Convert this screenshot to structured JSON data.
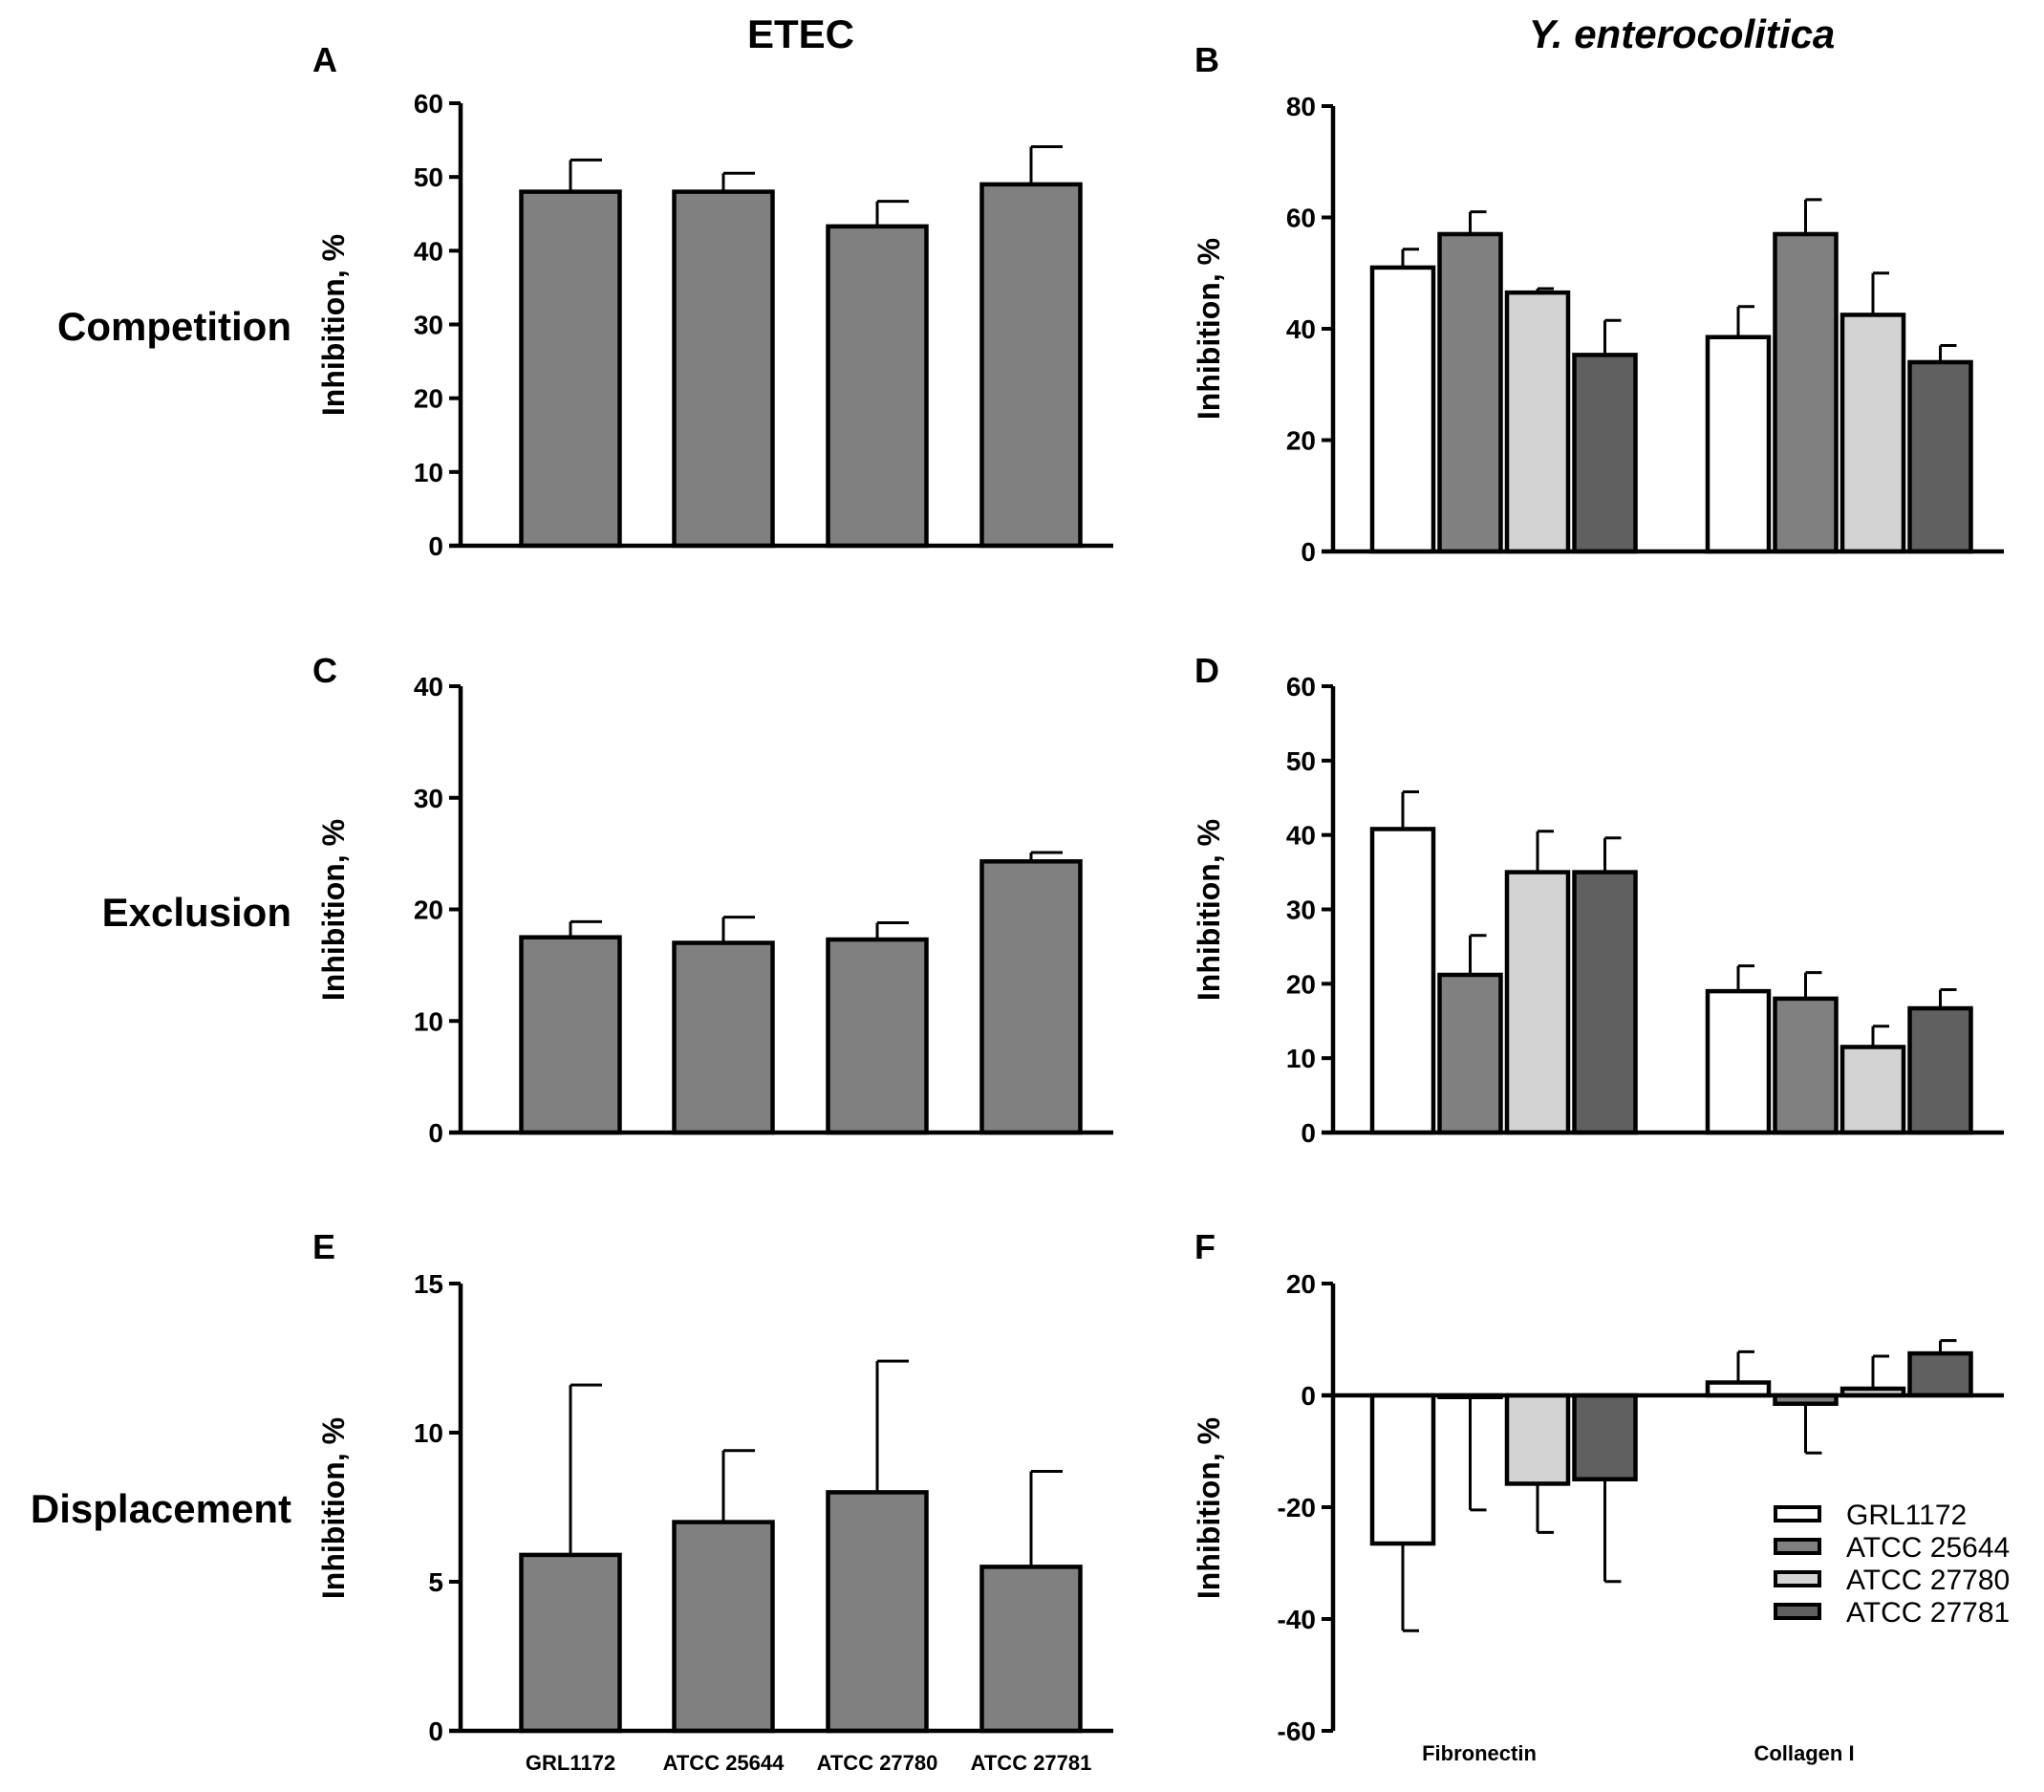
{
  "column_titles": {
    "left": "ETEC",
    "right": "Y. enterocolitica"
  },
  "row_labels": [
    "Competition",
    "Exclusion",
    "Displacement"
  ],
  "legend": {
    "entries": [
      "GRL1172",
      "ATCC 25644",
      "ATCC 27780",
      "ATCC 27781"
    ],
    "colors": [
      "#ffffff",
      "#808080",
      "#d3d3d3",
      "#606060"
    ]
  },
  "chart_data": [
    {
      "id": "A",
      "type": "bar",
      "row": "Competition",
      "title": "ETEC",
      "ylabel": "Inhibition, %",
      "ylim": [
        0,
        60
      ],
      "yticks": [
        0,
        10,
        20,
        30,
        40,
        50,
        60
      ],
      "categories": [
        "GRL1172",
        "ATCC 25644",
        "ATCC 27780",
        "ATCC 27781"
      ],
      "values": [
        48,
        48,
        43.3,
        49
      ],
      "errors": [
        4.3,
        2.5,
        3.4,
        5.1
      ],
      "bar_color": "#808080"
    },
    {
      "id": "B",
      "type": "bar",
      "row": "Competition",
      "title": "Y. enterocolitica",
      "ylabel": "Inhibition, %",
      "ylim": [
        0,
        80
      ],
      "yticks": [
        0,
        20,
        40,
        60,
        80
      ],
      "categories": [
        "Fibronectin",
        "Collagen I"
      ],
      "series": [
        {
          "name": "GRL1172",
          "values": [
            51,
            38.5
          ],
          "errors": [
            3.3,
            5.5
          ]
        },
        {
          "name": "ATCC 25644",
          "values": [
            57,
            57
          ],
          "errors": [
            4,
            6.2
          ]
        },
        {
          "name": "ATCC 27780",
          "values": [
            46.5,
            42.5
          ],
          "errors": [
            0.7,
            7.5
          ]
        },
        {
          "name": "ATCC 27781",
          "values": [
            35.3,
            34
          ],
          "errors": [
            6.2,
            3
          ]
        }
      ]
    },
    {
      "id": "C",
      "type": "bar",
      "row": "Exclusion",
      "title": "ETEC",
      "ylabel": "Inhibition, %",
      "ylim": [
        0,
        40
      ],
      "yticks": [
        0,
        10,
        20,
        30,
        40
      ],
      "categories": [
        "GRL1172",
        "ATCC 25644",
        "ATCC 27780",
        "ATCC 27781"
      ],
      "values": [
        17.5,
        17,
        17.3,
        24.3
      ],
      "errors": [
        1.4,
        2.3,
        1.5,
        0.8
      ],
      "bar_color": "#808080"
    },
    {
      "id": "D",
      "type": "bar",
      "row": "Exclusion",
      "title": "Y. enterocolitica",
      "ylabel": "Inhibition, %",
      "ylim": [
        0,
        60
      ],
      "yticks": [
        0,
        10,
        20,
        30,
        40,
        50,
        60
      ],
      "categories": [
        "Fibronectin",
        "Collagen I"
      ],
      "series": [
        {
          "name": "GRL1172",
          "values": [
            40.8,
            19
          ],
          "errors": [
            5,
            3.4
          ]
        },
        {
          "name": "ATCC 25644",
          "values": [
            21.2,
            18
          ],
          "errors": [
            5.3,
            3.5
          ]
        },
        {
          "name": "ATCC 27780",
          "values": [
            35,
            11.5
          ],
          "errors": [
            5.5,
            2.8
          ]
        },
        {
          "name": "ATCC 27781",
          "values": [
            35,
            16.7
          ],
          "errors": [
            4.6,
            2.5
          ]
        }
      ]
    },
    {
      "id": "E",
      "type": "bar",
      "row": "Displacement",
      "title": "ETEC",
      "ylabel": "Inhibition, %",
      "ylim": [
        0,
        15
      ],
      "yticks": [
        0,
        5,
        10,
        15
      ],
      "categories": [
        "GRL1172",
        "ATCC 25644",
        "ATCC 27780",
        "ATCC 27781"
      ],
      "values": [
        5.9,
        7,
        8,
        5.5
      ],
      "errors": [
        5.7,
        2.4,
        4.4,
        3.2
      ],
      "bar_color": "#808080"
    },
    {
      "id": "F",
      "type": "bar",
      "row": "Displacement",
      "title": "Y. enterocolitica",
      "ylabel": "Inhibition, %",
      "ylim": [
        -60,
        20
      ],
      "yticks": [
        -60,
        -40,
        -20,
        0,
        20
      ],
      "categories": [
        "Fibronectin",
        "Collagen I"
      ],
      "series": [
        {
          "name": "GRL1172",
          "values": [
            -26.5,
            2.3
          ],
          "errors": [
            15.6,
            5.5
          ]
        },
        {
          "name": "ATCC 25644",
          "values": [
            -0.3,
            -1.5
          ],
          "errors": [
            20.2,
            8.8
          ]
        },
        {
          "name": "ATCC 27780",
          "values": [
            -15.8,
            1.2
          ],
          "errors": [
            8.7,
            5.8
          ]
        },
        {
          "name": "ATCC 27781",
          "values": [
            -15,
            7.5
          ],
          "errors": [
            18.3,
            2.3
          ]
        }
      ],
      "legend_position": "right"
    }
  ]
}
